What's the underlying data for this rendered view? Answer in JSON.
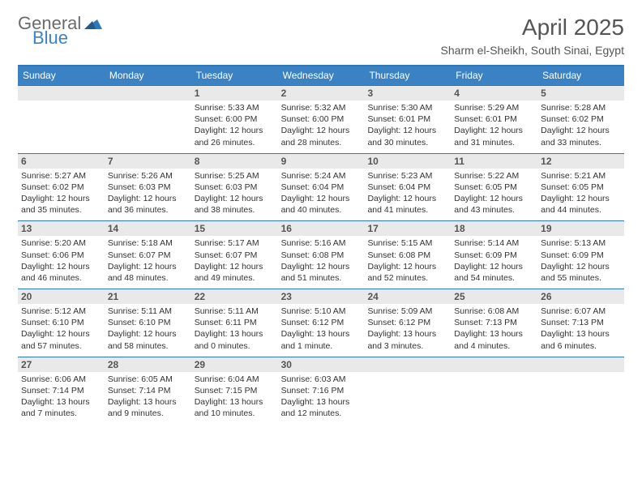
{
  "logo": {
    "text1": "General",
    "text2": "Blue",
    "gray_color": "#6b6b6b",
    "blue_color": "#3b82c4"
  },
  "header": {
    "title": "April 2025",
    "subtitle": "Sharm el-Sheikh, South Sinai, Egypt"
  },
  "colors": {
    "header_band": "#3b82c4",
    "band_text": "#ffffff",
    "daynum_bg": "#e9e9e9",
    "daynum_text": "#555555",
    "rule": "#2b78bb",
    "body_text": "#333333"
  },
  "daysOfWeek": [
    "Sunday",
    "Monday",
    "Tuesday",
    "Wednesday",
    "Thursday",
    "Friday",
    "Saturday"
  ],
  "weeks": [
    [
      {
        "empty": true
      },
      {
        "empty": true
      },
      {
        "day": "1",
        "sunrise": "Sunrise: 5:33 AM",
        "sunset": "Sunset: 6:00 PM",
        "daylight": "Daylight: 12 hours and 26 minutes."
      },
      {
        "day": "2",
        "sunrise": "Sunrise: 5:32 AM",
        "sunset": "Sunset: 6:00 PM",
        "daylight": "Daylight: 12 hours and 28 minutes."
      },
      {
        "day": "3",
        "sunrise": "Sunrise: 5:30 AM",
        "sunset": "Sunset: 6:01 PM",
        "daylight": "Daylight: 12 hours and 30 minutes."
      },
      {
        "day": "4",
        "sunrise": "Sunrise: 5:29 AM",
        "sunset": "Sunset: 6:01 PM",
        "daylight": "Daylight: 12 hours and 31 minutes."
      },
      {
        "day": "5",
        "sunrise": "Sunrise: 5:28 AM",
        "sunset": "Sunset: 6:02 PM",
        "daylight": "Daylight: 12 hours and 33 minutes."
      }
    ],
    [
      {
        "day": "6",
        "sunrise": "Sunrise: 5:27 AM",
        "sunset": "Sunset: 6:02 PM",
        "daylight": "Daylight: 12 hours and 35 minutes."
      },
      {
        "day": "7",
        "sunrise": "Sunrise: 5:26 AM",
        "sunset": "Sunset: 6:03 PM",
        "daylight": "Daylight: 12 hours and 36 minutes."
      },
      {
        "day": "8",
        "sunrise": "Sunrise: 5:25 AM",
        "sunset": "Sunset: 6:03 PM",
        "daylight": "Daylight: 12 hours and 38 minutes."
      },
      {
        "day": "9",
        "sunrise": "Sunrise: 5:24 AM",
        "sunset": "Sunset: 6:04 PM",
        "daylight": "Daylight: 12 hours and 40 minutes."
      },
      {
        "day": "10",
        "sunrise": "Sunrise: 5:23 AM",
        "sunset": "Sunset: 6:04 PM",
        "daylight": "Daylight: 12 hours and 41 minutes."
      },
      {
        "day": "11",
        "sunrise": "Sunrise: 5:22 AM",
        "sunset": "Sunset: 6:05 PM",
        "daylight": "Daylight: 12 hours and 43 minutes."
      },
      {
        "day": "12",
        "sunrise": "Sunrise: 5:21 AM",
        "sunset": "Sunset: 6:05 PM",
        "daylight": "Daylight: 12 hours and 44 minutes."
      }
    ],
    [
      {
        "day": "13",
        "sunrise": "Sunrise: 5:20 AM",
        "sunset": "Sunset: 6:06 PM",
        "daylight": "Daylight: 12 hours and 46 minutes."
      },
      {
        "day": "14",
        "sunrise": "Sunrise: 5:18 AM",
        "sunset": "Sunset: 6:07 PM",
        "daylight": "Daylight: 12 hours and 48 minutes."
      },
      {
        "day": "15",
        "sunrise": "Sunrise: 5:17 AM",
        "sunset": "Sunset: 6:07 PM",
        "daylight": "Daylight: 12 hours and 49 minutes."
      },
      {
        "day": "16",
        "sunrise": "Sunrise: 5:16 AM",
        "sunset": "Sunset: 6:08 PM",
        "daylight": "Daylight: 12 hours and 51 minutes."
      },
      {
        "day": "17",
        "sunrise": "Sunrise: 5:15 AM",
        "sunset": "Sunset: 6:08 PM",
        "daylight": "Daylight: 12 hours and 52 minutes."
      },
      {
        "day": "18",
        "sunrise": "Sunrise: 5:14 AM",
        "sunset": "Sunset: 6:09 PM",
        "daylight": "Daylight: 12 hours and 54 minutes."
      },
      {
        "day": "19",
        "sunrise": "Sunrise: 5:13 AM",
        "sunset": "Sunset: 6:09 PM",
        "daylight": "Daylight: 12 hours and 55 minutes."
      }
    ],
    [
      {
        "day": "20",
        "sunrise": "Sunrise: 5:12 AM",
        "sunset": "Sunset: 6:10 PM",
        "daylight": "Daylight: 12 hours and 57 minutes."
      },
      {
        "day": "21",
        "sunrise": "Sunrise: 5:11 AM",
        "sunset": "Sunset: 6:10 PM",
        "daylight": "Daylight: 12 hours and 58 minutes."
      },
      {
        "day": "22",
        "sunrise": "Sunrise: 5:11 AM",
        "sunset": "Sunset: 6:11 PM",
        "daylight": "Daylight: 13 hours and 0 minutes."
      },
      {
        "day": "23",
        "sunrise": "Sunrise: 5:10 AM",
        "sunset": "Sunset: 6:12 PM",
        "daylight": "Daylight: 13 hours and 1 minute."
      },
      {
        "day": "24",
        "sunrise": "Sunrise: 5:09 AM",
        "sunset": "Sunset: 6:12 PM",
        "daylight": "Daylight: 13 hours and 3 minutes."
      },
      {
        "day": "25",
        "sunrise": "Sunrise: 6:08 AM",
        "sunset": "Sunset: 7:13 PM",
        "daylight": "Daylight: 13 hours and 4 minutes."
      },
      {
        "day": "26",
        "sunrise": "Sunrise: 6:07 AM",
        "sunset": "Sunset: 7:13 PM",
        "daylight": "Daylight: 13 hours and 6 minutes."
      }
    ],
    [
      {
        "day": "27",
        "sunrise": "Sunrise: 6:06 AM",
        "sunset": "Sunset: 7:14 PM",
        "daylight": "Daylight: 13 hours and 7 minutes."
      },
      {
        "day": "28",
        "sunrise": "Sunrise: 6:05 AM",
        "sunset": "Sunset: 7:14 PM",
        "daylight": "Daylight: 13 hours and 9 minutes."
      },
      {
        "day": "29",
        "sunrise": "Sunrise: 6:04 AM",
        "sunset": "Sunset: 7:15 PM",
        "daylight": "Daylight: 13 hours and 10 minutes."
      },
      {
        "day": "30",
        "sunrise": "Sunrise: 6:03 AM",
        "sunset": "Sunset: 7:16 PM",
        "daylight": "Daylight: 13 hours and 12 minutes."
      },
      {
        "empty": true
      },
      {
        "empty": true
      },
      {
        "empty": true
      }
    ]
  ]
}
